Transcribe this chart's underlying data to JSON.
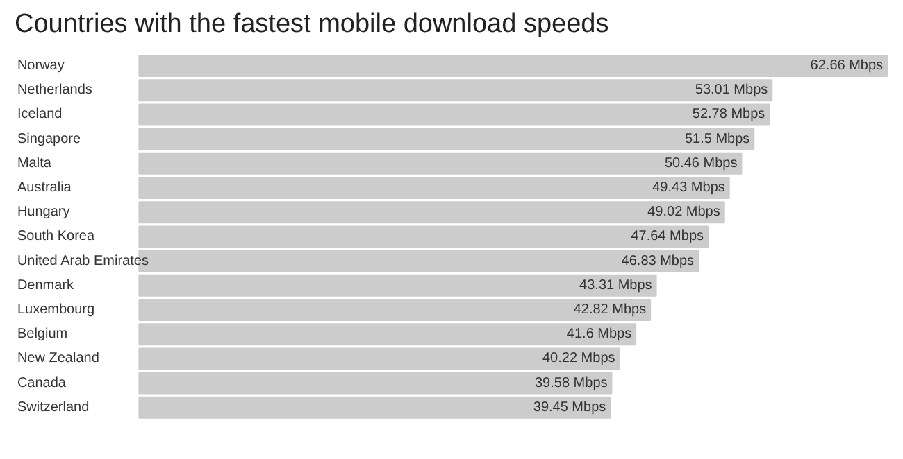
{
  "chart_data": {
    "type": "bar",
    "orientation": "horizontal",
    "title": "Countries with the fastest mobile download speeds",
    "categories": [
      "Norway",
      "Netherlands",
      "Iceland",
      "Singapore",
      "Malta",
      "Australia",
      "Hungary",
      "South Korea",
      "United Arab Emirates",
      "Denmark",
      "Luxembourg",
      "Belgium",
      "New Zealand",
      "Canada",
      "Switzerland"
    ],
    "values": [
      62.66,
      53.01,
      52.78,
      51.5,
      50.46,
      49.43,
      49.02,
      47.64,
      46.83,
      43.31,
      42.82,
      41.6,
      40.22,
      39.58,
      39.45
    ],
    "value_labels": [
      "62.66 Mbps",
      "53.01 Mbps",
      "52.78 Mbps",
      "51.5 Mbps",
      "50.46 Mbps",
      "49.43 Mbps",
      "49.02 Mbps",
      "47.64 Mbps",
      "46.83 Mbps",
      "43.31 Mbps",
      "42.82 Mbps",
      "41.6 Mbps",
      "40.22 Mbps",
      "39.58 Mbps",
      "39.45 Mbps"
    ],
    "color": "#cccccc"
  }
}
